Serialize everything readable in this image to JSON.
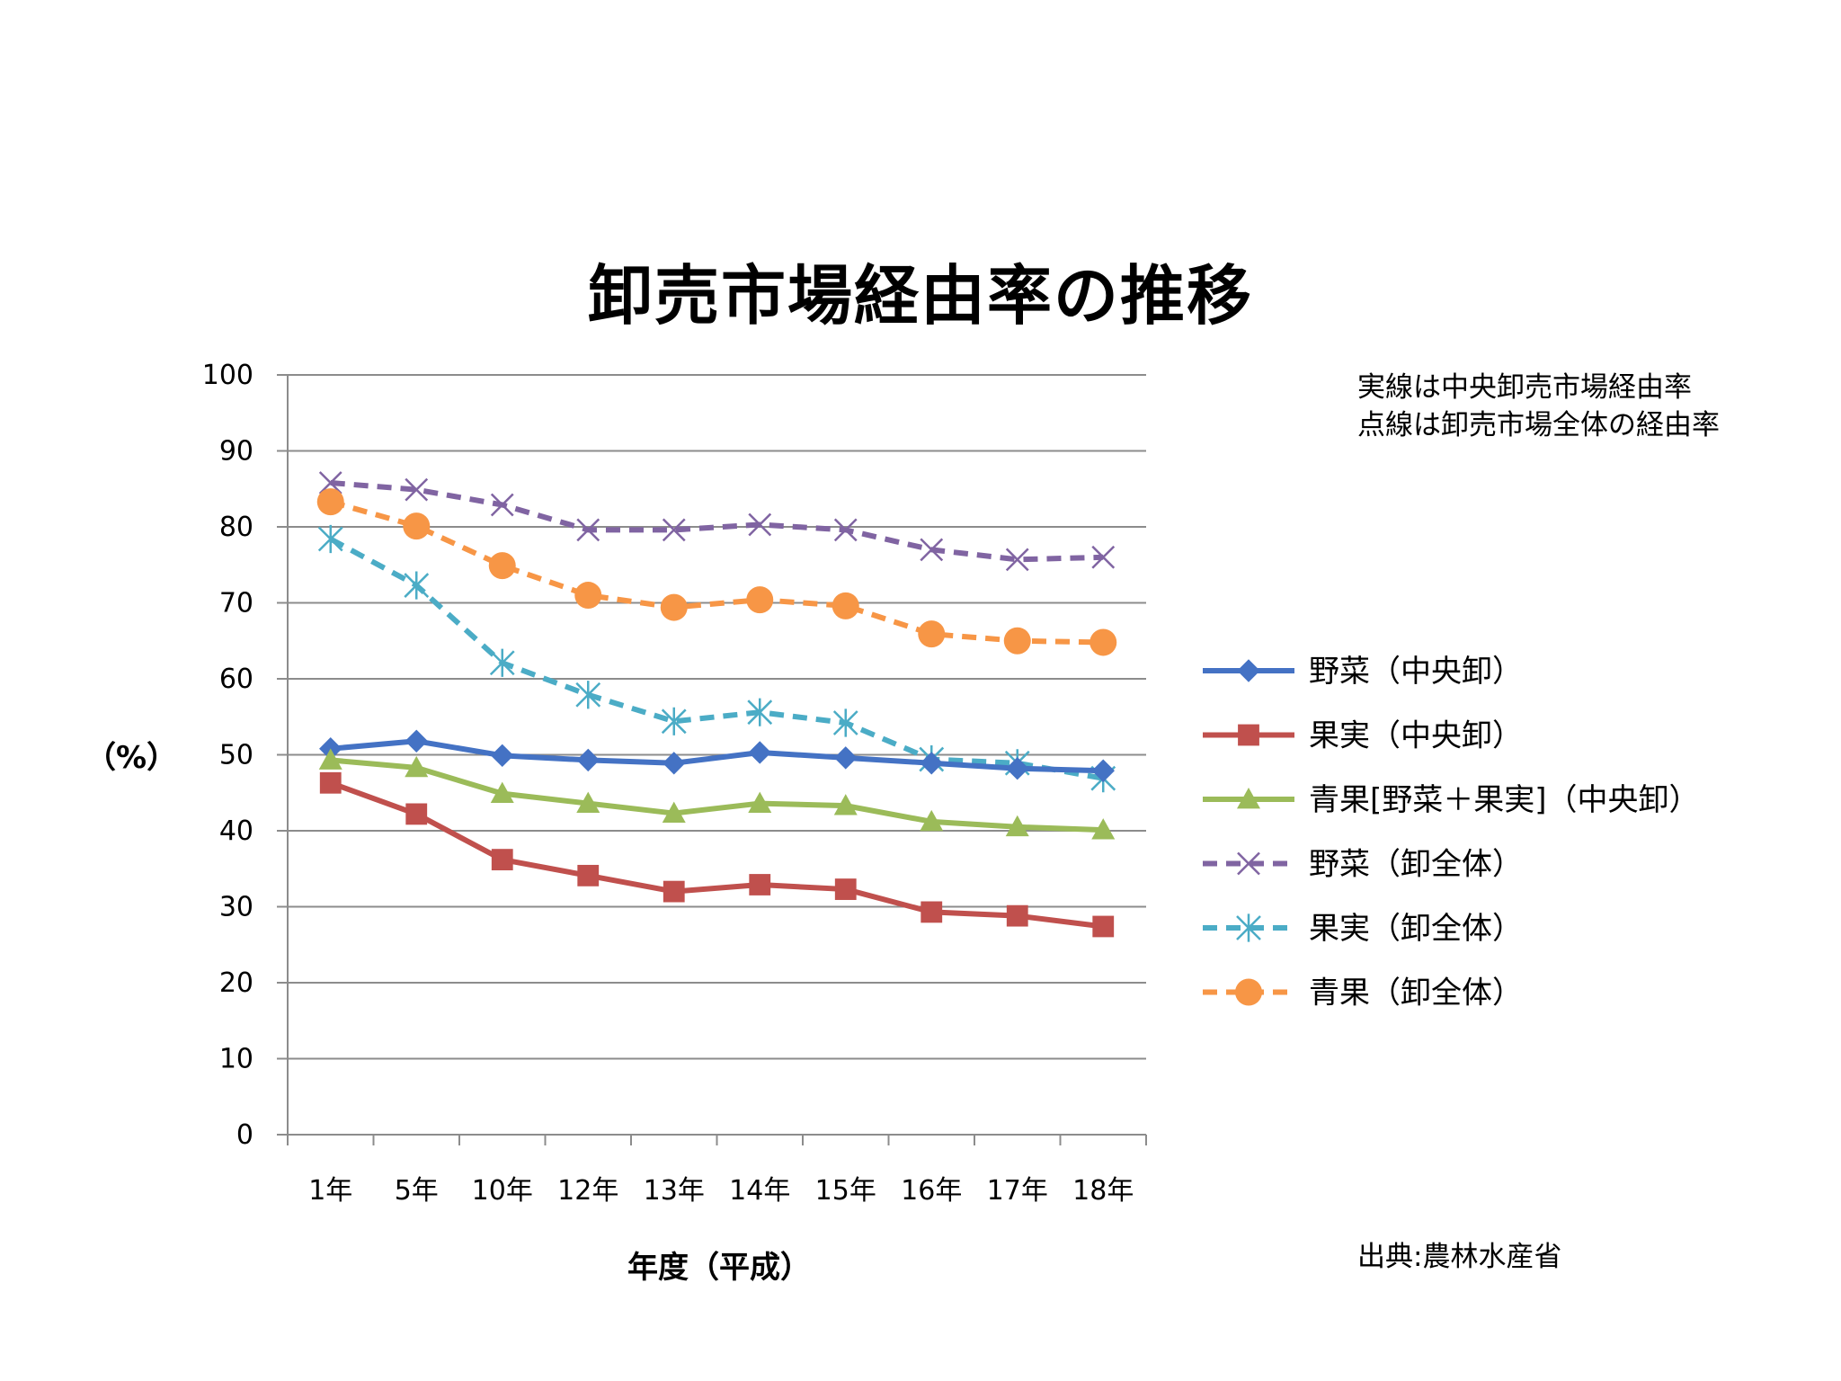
{
  "title": "卸売市場経由率の推移",
  "note": [
    "実線は中央卸売市場経由率",
    "点線は卸売市場全体の経由率"
  ],
  "source": "出典:農林水産省",
  "chart_data": {
    "type": "line",
    "title": "卸売市場経由率の推移",
    "xlabel": "年度（平成）",
    "ylabel": "（%）",
    "ylim": [
      0,
      100
    ],
    "yticks": [
      0,
      10,
      20,
      30,
      40,
      50,
      60,
      70,
      80,
      90,
      100
    ],
    "grid": true,
    "legend_position": "right",
    "categories": [
      "1年",
      "5年",
      "10年",
      "12年",
      "13年",
      "14年",
      "15年",
      "16年",
      "17年",
      "18年"
    ],
    "series": [
      {
        "name": "野菜（中央卸）",
        "style": "solid",
        "marker": "diamond",
        "color": "#4472C4",
        "values": [
          50.8,
          51.8,
          49.9,
          49.3,
          48.9,
          50.3,
          49.6,
          48.9,
          48.2,
          47.9
        ]
      },
      {
        "name": "果実（中央卸）",
        "style": "solid",
        "marker": "square",
        "color": "#C0504D",
        "values": [
          46.3,
          42.2,
          36.2,
          34.1,
          32.0,
          32.9,
          32.3,
          29.3,
          28.8,
          27.4
        ]
      },
      {
        "name": "青果[野菜＋果実]（中央卸）",
        "style": "solid",
        "marker": "triangle",
        "color": "#9BBB59",
        "values": [
          49.3,
          48.3,
          44.9,
          43.6,
          42.3,
          43.6,
          43.3,
          41.2,
          40.5,
          40.1
        ]
      },
      {
        "name": "野菜（卸全体）",
        "style": "dashed",
        "marker": "x",
        "color": "#8064A2",
        "values": [
          85.8,
          84.9,
          82.9,
          79.6,
          79.6,
          80.3,
          79.6,
          77.0,
          75.7,
          76.0
        ]
      },
      {
        "name": "果実（卸全体）",
        "style": "dashed",
        "marker": "asterisk",
        "color": "#4BACC6",
        "values": [
          78.4,
          72.3,
          62.1,
          57.9,
          54.4,
          55.6,
          54.2,
          49.4,
          48.9,
          46.9
        ]
      },
      {
        "name": "青果（卸全体）",
        "style": "dashed",
        "marker": "circle",
        "color": "#F79646",
        "values": [
          83.3,
          80.1,
          74.9,
          71.0,
          69.4,
          70.4,
          69.6,
          65.9,
          65.0,
          64.8
        ]
      }
    ]
  }
}
